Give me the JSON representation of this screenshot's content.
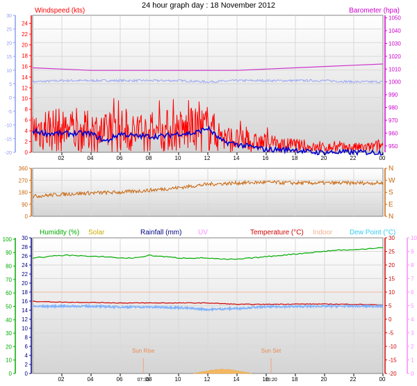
{
  "title": "24 hour graph day : 18 November 2012",
  "colors": {
    "wind_speed": "#ff0000",
    "wind_avg": "#0000cc",
    "wind_axis": "#8c9cf0",
    "barometer": "#cc00cc",
    "baro_line": "#cc33cc",
    "wind_dir": "#c8640a",
    "humidity": "#00aa00",
    "solar": "#ccaa00",
    "rain": "#000080",
    "uv": "#ff88ff",
    "temperature": "#cc0000",
    "indoor": "#f0b090",
    "dew": "#33ccee",
    "dew_line": "#7fb2ff",
    "grid": "#d8d8d8",
    "panel_bg_top": "#ffffff",
    "panel_bg_bottom": "#d8d8d8"
  },
  "x_ticks": [
    "02",
    "04",
    "06",
    "08",
    "10",
    "12",
    "14",
    "16",
    "18",
    "20",
    "22",
    "00"
  ],
  "x_axis_extra": {
    "sun_rise_label": "Sun Rise",
    "sun_set_label": "Sun Set",
    "sun_rise_time": "07:35",
    "sun_set_time": "16:20"
  },
  "chart_data": [
    {
      "type": "line",
      "id": "wind_panel",
      "x_range": [
        0,
        24
      ],
      "series": [
        {
          "name": "Windspeed (kts)",
          "axis": "left",
          "kind": "gust_band",
          "x": [
            0,
            1,
            2,
            3,
            4,
            5,
            6,
            7,
            8,
            9,
            10,
            11,
            12,
            13,
            14,
            15,
            16,
            17,
            18,
            19,
            20,
            21,
            22,
            23,
            24
          ],
          "values": [
            9,
            10,
            9,
            8,
            9,
            8,
            9,
            8,
            8,
            9,
            9,
            9,
            10,
            6,
            5,
            4,
            4,
            3,
            3,
            2,
            2,
            2,
            2,
            2,
            3
          ]
        },
        {
          "name": "Wind average",
          "axis": "left",
          "kind": "line",
          "x": [
            0,
            1,
            2,
            3,
            4,
            5,
            6,
            7,
            8,
            9,
            10,
            11,
            12,
            13,
            14,
            15,
            16,
            17,
            18,
            19,
            20,
            21,
            22,
            23,
            24
          ],
          "values": [
            4,
            3.5,
            3.5,
            3.5,
            3.5,
            2,
            3.5,
            3,
            3,
            3,
            3.5,
            3.5,
            4.5,
            2,
            1.5,
            1,
            0.5,
            0.5,
            0.5,
            0,
            0,
            0,
            0,
            0,
            0
          ]
        },
        {
          "name": "Barometer (hpa)",
          "axis": "right",
          "kind": "line",
          "x": [
            0,
            2,
            4,
            6,
            8,
            10,
            12,
            14,
            16,
            18,
            20,
            22,
            24
          ],
          "values": [
            1011,
            1010,
            1009,
            1009,
            1009,
            1009,
            1009,
            1009,
            1010,
            1011,
            1012,
            1013,
            1014
          ]
        },
        {
          "name": "Barometer trace",
          "axis": "right",
          "kind": "line",
          "x": [
            0,
            2,
            4,
            6,
            8,
            10,
            12,
            14,
            16,
            18,
            20,
            22,
            24
          ],
          "values": [
            1000,
            1001,
            1001,
            1001,
            1001,
            1001,
            1000,
            1001,
            1001,
            1001,
            1001,
            1000,
            1000
          ]
        }
      ],
      "y_left": {
        "label": "Windspeed (kts)",
        "ticks": [
          24,
          22,
          20,
          18,
          16,
          14,
          12,
          10,
          8,
          6,
          4,
          2,
          0
        ],
        "ylim": [
          0,
          25.5
        ]
      },
      "y_right": {
        "label": "Barometer (hpa)",
        "ticks": [
          1050,
          1040,
          1030,
          1020,
          1010,
          1000,
          990,
          980,
          970,
          960,
          950
        ],
        "ylim": [
          945,
          1052
        ]
      },
      "y_far_left": {
        "ticks": [
          "30",
          "25",
          "20",
          "15",
          "10",
          "5",
          "0",
          "-5",
          "-10",
          "-15",
          "-20"
        ]
      }
    },
    {
      "type": "line",
      "id": "direction_panel",
      "x_range": [
        0,
        24
      ],
      "series": [
        {
          "name": "Wind direction",
          "x": [
            0,
            2,
            4,
            6,
            8,
            10,
            12,
            14,
            16,
            18,
            20,
            22,
            24
          ],
          "values": [
            150,
            165,
            175,
            180,
            195,
            215,
            240,
            250,
            255,
            250,
            250,
            250,
            250
          ]
        }
      ],
      "y_left": {
        "ticks": [
          360,
          270,
          180,
          90,
          0
        ],
        "ylim": [
          0,
          360
        ]
      },
      "y_right_labels": [
        "N",
        "W",
        "S",
        "E",
        "N"
      ]
    },
    {
      "type": "line",
      "id": "weather_panel",
      "x_range": [
        0,
        24
      ],
      "series": [
        {
          "name": "Humidity (%)",
          "axis": "left_humidity",
          "x": [
            0,
            1,
            2,
            3,
            4,
            5,
            6,
            7,
            8,
            9,
            10,
            11,
            12,
            13,
            14,
            15,
            16,
            17,
            18,
            19,
            20,
            21,
            22,
            23,
            24
          ],
          "values": [
            86,
            87,
            88,
            88,
            87,
            87,
            86,
            86,
            88,
            87,
            86,
            86,
            86,
            85,
            85,
            86,
            87,
            88,
            89,
            90,
            91,
            92,
            92,
            93,
            94
          ]
        },
        {
          "name": "Temperature (°C)",
          "axis": "right_temp",
          "x": [
            0,
            2,
            4,
            6,
            8,
            10,
            12,
            14,
            16,
            18,
            20,
            22,
            24
          ],
          "values": [
            6.6,
            6.3,
            6.2,
            6.0,
            6.0,
            6.0,
            6.0,
            5.5,
            5.5,
            5.6,
            5.6,
            5.5,
            5.3
          ]
        },
        {
          "name": "Dew Point (°C)",
          "axis": "right_temp",
          "x": [
            0,
            2,
            4,
            6,
            8,
            10,
            12,
            14,
            16,
            18,
            20,
            22,
            24
          ],
          "values": [
            4.7,
            4.8,
            4.8,
            4.5,
            4.5,
            4.3,
            3.6,
            4.0,
            4.6,
            4.7,
            4.8,
            4.8,
            4.8
          ]
        },
        {
          "name": "Indoor",
          "axis": "right_temp",
          "x": [
            0,
            24
          ],
          "values": [
            10,
            10
          ]
        },
        {
          "name": "Solar",
          "axis": "rain_axis",
          "x": [
            11,
            12,
            13,
            14,
            15
          ],
          "values": [
            0,
            0.6,
            1,
            0.6,
            0
          ]
        }
      ],
      "y_left_humidity": {
        "label": "Humidity (%)",
        "ticks": [
          100,
          90,
          80,
          70,
          60,
          50,
          40,
          30,
          20,
          10,
          0
        ],
        "ylim": [
          0,
          101
        ]
      },
      "y_left_rain": {
        "label": "Rainfall (mm)",
        "ticks": [
          30,
          28,
          26,
          24,
          22,
          20,
          18,
          16,
          14,
          12,
          10,
          8,
          6,
          4,
          2,
          0
        ],
        "ylim": [
          0,
          30
        ]
      },
      "y_right_temp": {
        "label": "Temperature (°C)",
        "ticks": [
          30,
          25,
          20,
          15,
          10,
          5,
          0,
          -5,
          -10,
          -15,
          -20
        ],
        "ylim": [
          -20,
          30
        ]
      },
      "y_far_right": {
        "ticks": [
          10,
          9,
          8,
          7,
          6,
          5,
          4,
          3,
          2,
          1,
          0
        ]
      },
      "legend": [
        "Humidity (%)",
        "Solar",
        "Rainfall (mm)",
        "UV",
        "Temperature (°C)",
        "Indoor",
        "Dew Point (°C)"
      ]
    }
  ]
}
